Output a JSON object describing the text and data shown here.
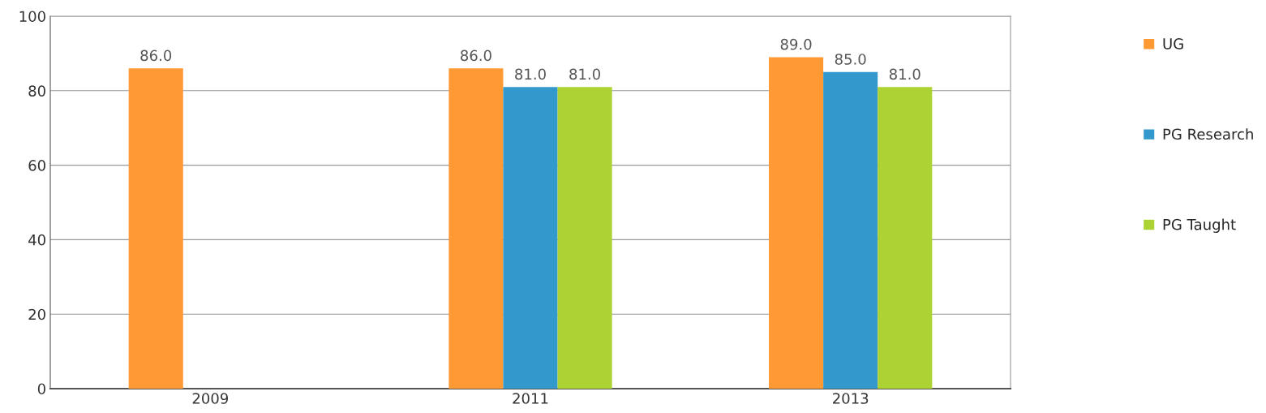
{
  "chart_data": {
    "type": "bar",
    "categories": [
      "2009",
      "2011",
      "2013"
    ],
    "series": [
      {
        "name": "UG",
        "color": "#ff9933",
        "values": [
          86,
          86,
          89
        ],
        "value_labels": [
          "86.0",
          "86.0",
          "89.0"
        ]
      },
      {
        "name": "PG Research",
        "color": "#3399cc",
        "values": [
          null,
          81,
          85
        ],
        "value_labels": [
          null,
          "81.0",
          "85.0"
        ]
      },
      {
        "name": "PG Taught",
        "color": "#acd333",
        "values": [
          null,
          81,
          81
        ],
        "value_labels": [
          null,
          "81.0",
          "81.0"
        ]
      }
    ],
    "ylim": [
      0,
      100
    ],
    "yticks": [
      0,
      20,
      40,
      60,
      80,
      100
    ],
    "grid": "y",
    "legend": "right"
  }
}
